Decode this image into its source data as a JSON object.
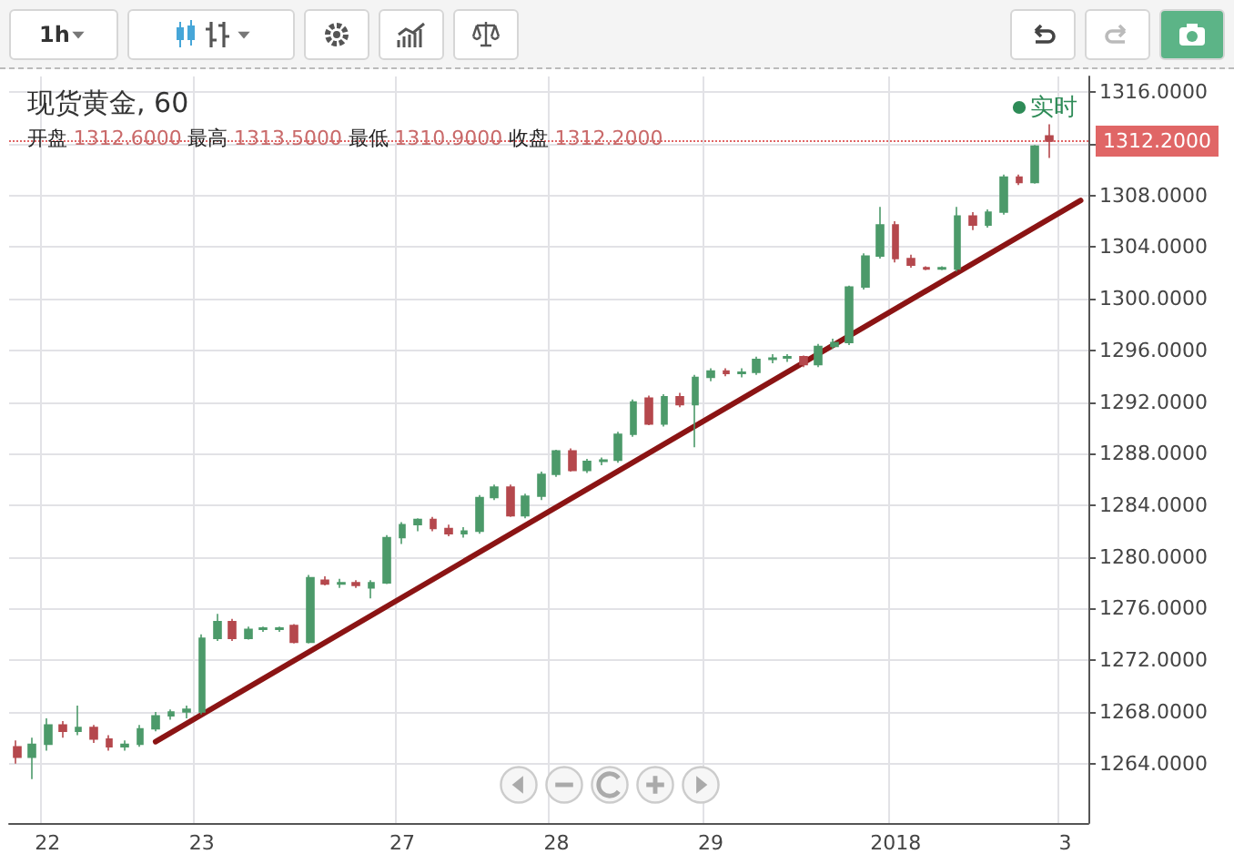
{
  "chart_data": {
    "type": "candlestick",
    "title": "现货黄金, 60",
    "subtitle": "开盘 1312.6000 最高 1313.5000 最低 1310.9000 收盘 1312.2000",
    "annotations": [
      "1h",
      "实时"
    ],
    "categories": [
      null,
      null,
      "22",
      null,
      null,
      null,
      null,
      null,
      null,
      null,
      null,
      null,
      "23",
      null,
      null,
      null,
      null,
      null,
      null,
      null,
      null,
      null,
      null,
      null,
      null,
      "27",
      null,
      null,
      null,
      null,
      null,
      null,
      null,
      null,
      null,
      "28",
      null,
      null,
      null,
      null,
      null,
      null,
      null,
      null,
      null,
      "29",
      null,
      null,
      null,
      null,
      null,
      null,
      null,
      null,
      null,
      null,
      null,
      "2018",
      null,
      null,
      null,
      null,
      null,
      null,
      null,
      null,
      null,
      null,
      "3",
      null
    ],
    "series": [
      {
        "colors": [
          "#b5484d",
          "#4c9a6a",
          "#4c9a6a",
          "#b5484d",
          "#4c9a6a",
          "#b5484d",
          "#b5484d",
          "#4c9a6a",
          "#4c9a6a",
          "#4c9a6a",
          "#4c9a6a",
          "#4c9a6a",
          "#4c9a6a",
          "#4c9a6a",
          "#b5484d",
          "#4c9a6a",
          "#4c9a6a",
          "#4c9a6a",
          "#b5484d",
          "#4c9a6a",
          "#b5484d",
          "#4c9a6a",
          "#b5484d",
          "#4c9a6a",
          "#4c9a6a",
          "#4c9a6a",
          "#4c9a6a",
          "#b5484d",
          "#b5484d",
          "#4c9a6a",
          "#4c9a6a",
          "#4c9a6a",
          "#b5484d",
          "#4c9a6a",
          "#4c9a6a",
          "#4c9a6a",
          "#b5484d",
          "#4c9a6a",
          "#4c9a6a",
          "#4c9a6a",
          "#4c9a6a",
          "#b5484d",
          "#4c9a6a",
          "#b5484d",
          "#4c9a6a",
          "#4c9a6a",
          "#b5484d",
          "#4c9a6a",
          "#4c9a6a",
          "#4c9a6a",
          "#4c9a6a",
          "#b5484d",
          "#4c9a6a",
          "#4c9a6a",
          "#4c9a6a",
          "#4c9a6a",
          "#4c9a6a",
          "#b5484d",
          "#b5484d",
          "#b5484d",
          "#4c9a6a",
          "#4c9a6a",
          "#b5484d",
          "#4c9a6a",
          "#4c9a6a",
          "#b5484d",
          "#4c9a6a",
          "#b5484d",
          null,
          null
        ],
        "ohlc": [
          [
            1265.3,
            1265.8,
            1264.0,
            1264.5
          ],
          [
            1264.5,
            1266.0,
            1262.8,
            1265.5
          ],
          [
            1265.5,
            1267.5,
            1265.0,
            1267.0
          ],
          [
            1267.0,
            1267.3,
            1266.0,
            1266.5
          ],
          [
            1266.5,
            1268.5,
            1266.2,
            1266.8
          ],
          [
            1266.8,
            1267.0,
            1265.6,
            1265.9
          ],
          [
            1265.9,
            1266.2,
            1265.0,
            1265.3
          ],
          [
            1265.3,
            1265.8,
            1265.0,
            1265.5
          ],
          [
            1265.5,
            1267.0,
            1265.3,
            1266.7
          ],
          [
            1266.7,
            1268.0,
            1266.5,
            1267.7
          ],
          [
            1267.7,
            1268.2,
            1267.4,
            1268.0
          ],
          [
            1268.0,
            1268.5,
            1267.5,
            1268.2
          ],
          [
            1268.0,
            1274.0,
            1267.8,
            1273.7
          ],
          [
            1273.7,
            1275.6,
            1273.5,
            1275.0
          ],
          [
            1275.0,
            1275.2,
            1273.5,
            1273.7
          ],
          [
            1273.7,
            1274.6,
            1273.6,
            1274.4
          ],
          [
            1274.4,
            1274.6,
            1274.2,
            1274.5
          ],
          [
            1274.4,
            1274.6,
            1274.2,
            1274.5
          ],
          [
            1274.7,
            1274.8,
            1273.3,
            1273.4
          ],
          [
            1273.4,
            1278.6,
            1273.3,
            1278.4
          ],
          [
            1278.2,
            1278.5,
            1277.8,
            1277.9
          ],
          [
            1277.9,
            1278.3,
            1277.6,
            1278.0
          ],
          [
            1278.0,
            1278.2,
            1277.6,
            1277.8
          ],
          [
            1277.6,
            1278.2,
            1276.8,
            1278.0
          ],
          [
            1278.0,
            1281.7,
            1277.9,
            1281.5
          ],
          [
            1281.5,
            1282.7,
            1281.0,
            1282.5
          ],
          [
            1282.5,
            1283.0,
            1282.0,
            1282.9
          ],
          [
            1282.9,
            1283.1,
            1282.0,
            1282.2
          ],
          [
            1282.2,
            1282.5,
            1281.6,
            1281.8
          ],
          [
            1281.8,
            1282.3,
            1281.5,
            1282.0
          ],
          [
            1282.0,
            1284.8,
            1281.8,
            1284.6
          ],
          [
            1284.6,
            1285.6,
            1284.4,
            1285.4
          ],
          [
            1285.4,
            1285.6,
            1283.1,
            1283.2
          ],
          [
            1283.2,
            1284.9,
            1283.0,
            1284.7
          ],
          [
            1284.7,
            1286.6,
            1284.4,
            1286.4
          ],
          [
            1286.4,
            1288.3,
            1286.2,
            1288.2
          ],
          [
            1288.2,
            1288.4,
            1286.6,
            1286.7
          ],
          [
            1286.7,
            1287.6,
            1286.5,
            1287.4
          ],
          [
            1287.4,
            1287.7,
            1287.1,
            1287.5
          ],
          [
            1287.5,
            1289.7,
            1287.3,
            1289.5
          ],
          [
            1289.5,
            1292.2,
            1289.3,
            1292.0
          ],
          [
            1292.3,
            1292.5,
            1290.2,
            1290.3
          ],
          [
            1290.3,
            1292.6,
            1290.1,
            1292.4
          ],
          [
            1292.4,
            1292.7,
            1291.6,
            1291.8
          ],
          [
            1291.8,
            1294.1,
            1288.5,
            1293.9
          ],
          [
            1293.9,
            1294.6,
            1293.6,
            1294.4
          ],
          [
            1294.4,
            1294.6,
            1294.0,
            1294.2
          ],
          [
            1294.2,
            1294.6,
            1293.9,
            1294.3
          ],
          [
            1294.3,
            1295.5,
            1294.1,
            1295.3
          ],
          [
            1295.3,
            1295.7,
            1295.0,
            1295.4
          ],
          [
            1295.4,
            1295.7,
            1295.1,
            1295.5
          ],
          [
            1295.5,
            1295.6,
            1294.7,
            1294.9
          ],
          [
            1294.9,
            1296.5,
            1294.7,
            1296.3
          ],
          [
            1296.3,
            1296.9,
            1296.1,
            1296.6
          ],
          [
            1296.6,
            1301.0,
            1296.4,
            1300.9
          ],
          [
            1300.9,
            1303.5,
            1300.7,
            1303.3
          ],
          [
            1303.3,
            1307.1,
            1303.1,
            1305.7
          ],
          [
            1305.7,
            1306.0,
            1302.8,
            1303.1
          ],
          [
            1303.1,
            1303.4,
            1302.4,
            1302.6
          ],
          [
            1302.4,
            1302.5,
            1302.2,
            1302.3
          ],
          [
            1302.3,
            1302.5,
            1302.2,
            1302.4
          ],
          [
            1302.3,
            1307.1,
            1302.1,
            1306.4
          ],
          [
            1306.4,
            1306.7,
            1305.3,
            1305.7
          ],
          [
            1305.7,
            1306.9,
            1305.5,
            1306.7
          ],
          [
            1306.7,
            1309.6,
            1306.5,
            1309.4
          ],
          [
            1309.4,
            1309.6,
            1308.8,
            1309.0
          ],
          [
            1309.0,
            1311.9,
            1308.9,
            1311.8
          ],
          [
            1312.6,
            1313.5,
            1310.9,
            1312.2
          ],
          null,
          null
        ]
      },
      {
        "type": "line",
        "color": "#8b1414",
        "values": [
          null,
          null,
          null,
          null,
          null,
          null,
          null,
          null,
          null,
          1265.7,
          null,
          null,
          null,
          null,
          null,
          null,
          null,
          null,
          null,
          null,
          null,
          null,
          null,
          null,
          null,
          null,
          null,
          null,
          null,
          null,
          null,
          null,
          null,
          null,
          null,
          null,
          null,
          null,
          null,
          null,
          null,
          null,
          null,
          null,
          null,
          null,
          null,
          null,
          null,
          null,
          null,
          null,
          null,
          null,
          null,
          null,
          null,
          null,
          null,
          null,
          null,
          null,
          null,
          null,
          null,
          null,
          null,
          null,
          null,
          1307.6
        ]
      }
    ],
    "ylim": [
      1259.4,
      1317.2
    ],
    "yticks": [
      {
        "value": 1264,
        "label": "1264.0000"
      },
      {
        "value": 1268,
        "label": "1268.0000"
      },
      {
        "value": 1272,
        "label": "1272.0000"
      },
      {
        "value": 1276,
        "label": "1276.0000"
      },
      {
        "value": 1280,
        "label": "1280.0000"
      },
      {
        "value": 1284,
        "label": "1284.0000"
      },
      {
        "value": 1288,
        "label": "1288.0000"
      },
      {
        "value": 1292,
        "label": "1292.0000"
      },
      {
        "value": 1296,
        "label": "1296.0000"
      },
      {
        "value": 1300,
        "label": "1300.0000"
      },
      {
        "value": 1304,
        "label": "1304.0000"
      },
      {
        "value": 1308,
        "label": "1308.0000"
      },
      {
        "value": 1312,
        "label": null
      },
      {
        "value": 1316,
        "label": "1316.0000"
      }
    ],
    "ref_lines": [
      {
        "axis": "y",
        "value": 1312.2,
        "label": "1312.2000",
        "color": "#e06666",
        "line_style": "dotted"
      }
    ],
    "grid": true
  }
}
